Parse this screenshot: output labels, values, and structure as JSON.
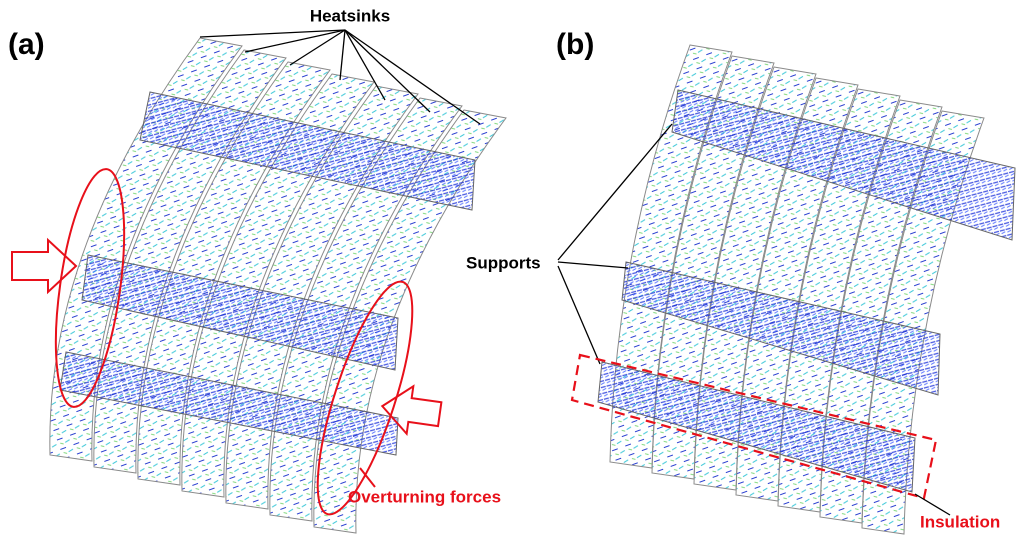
{
  "panels": [
    {
      "label": "(a)"
    },
    {
      "label": "(b)"
    }
  ],
  "annotations": {
    "heatsinks": "Heatsinks",
    "supports": "Supports",
    "overturning_forces": "Overturning forces",
    "insulation": "Insulation"
  }
}
